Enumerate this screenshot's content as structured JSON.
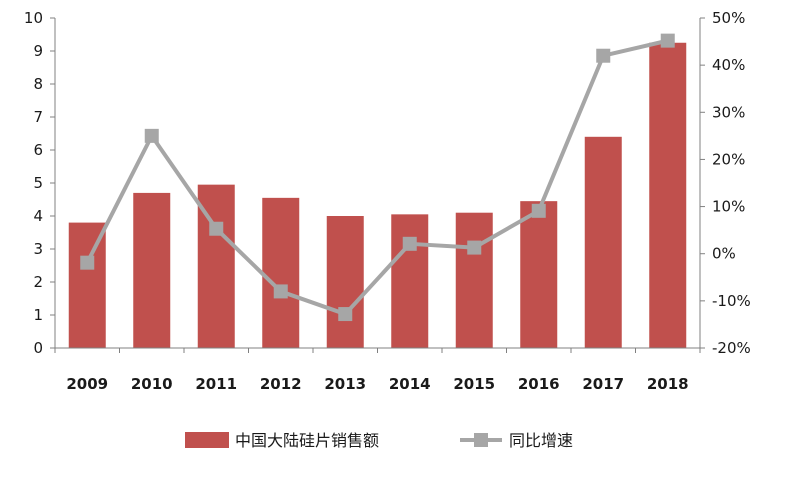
{
  "chart_data": {
    "type": "bar",
    "categories": [
      "2009",
      "2010",
      "2011",
      "2012",
      "2013",
      "2014",
      "2015",
      "2016",
      "2017",
      "2018"
    ],
    "series": [
      {
        "name": "中国大陆硅片销售额",
        "type": "bar",
        "axis": "left",
        "color": "#c0504d",
        "values": [
          3.8,
          4.7,
          4.95,
          4.55,
          4.0,
          4.05,
          4.1,
          4.45,
          6.4,
          9.25
        ]
      },
      {
        "name": "同比增速",
        "type": "line",
        "axis": "right",
        "color": "#a6a6a6",
        "marker_color": "#a6a6a6",
        "values": [
          -1.9,
          25.0,
          5.3,
          -8.0,
          -12.8,
          2.1,
          1.3,
          9.1,
          42.0,
          45.2
        ]
      }
    ],
    "y_left": {
      "ylim": [
        0,
        10
      ],
      "ticks": [
        "0",
        "1",
        "2",
        "3",
        "4",
        "5",
        "6",
        "7",
        "8",
        "9",
        "10"
      ]
    },
    "y_right": {
      "ylim": [
        -20,
        50
      ],
      "ticks": [
        "-20%",
        "-10%",
        "0%",
        "10%",
        "20%",
        "30%",
        "40%",
        "50%"
      ]
    },
    "grid": false,
    "legend_position": "bottom"
  }
}
